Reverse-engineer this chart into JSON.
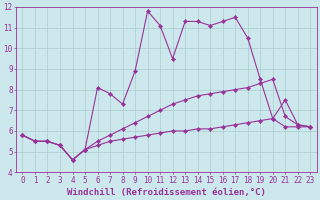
{
  "xlabel": "Windchill (Refroidissement éolien,°C)",
  "background_color": "#cce8ec",
  "grid_color": "#aacccc",
  "line_color": "#993399",
  "xlim": [
    -0.5,
    23.5
  ],
  "ylim": [
    4,
    12
  ],
  "xticks": [
    0,
    1,
    2,
    3,
    4,
    5,
    6,
    7,
    8,
    9,
    10,
    11,
    12,
    13,
    14,
    15,
    16,
    17,
    18,
    19,
    20,
    21,
    22,
    23
  ],
  "yticks": [
    4,
    5,
    6,
    7,
    8,
    9,
    10,
    11,
    12
  ],
  "series1_x": [
    0,
    1,
    2,
    3,
    4,
    5,
    6,
    7,
    8,
    9,
    10,
    11,
    12,
    13,
    14,
    15,
    16,
    17,
    18,
    19,
    20,
    21,
    22,
    23
  ],
  "series1_y": [
    5.8,
    5.5,
    5.5,
    5.3,
    4.6,
    5.1,
    5.3,
    5.5,
    5.6,
    5.7,
    5.8,
    5.9,
    6.0,
    6.0,
    6.1,
    6.1,
    6.2,
    6.3,
    6.4,
    6.5,
    6.6,
    6.2,
    6.2,
    6.2
  ],
  "series2_x": [
    0,
    1,
    2,
    3,
    4,
    5,
    6,
    7,
    8,
    9,
    10,
    11,
    12,
    13,
    14,
    15,
    16,
    17,
    18,
    19,
    20,
    21,
    22,
    23
  ],
  "series2_y": [
    5.8,
    5.5,
    5.5,
    5.3,
    4.6,
    5.1,
    5.5,
    5.8,
    6.1,
    6.4,
    6.7,
    7.0,
    7.3,
    7.5,
    7.7,
    7.8,
    7.9,
    8.0,
    8.1,
    8.3,
    8.5,
    6.7,
    6.3,
    6.2
  ],
  "series3_x": [
    0,
    1,
    2,
    3,
    4,
    5,
    6,
    7,
    8,
    9,
    10,
    11,
    12,
    13,
    14,
    15,
    16,
    17,
    18,
    19,
    20,
    21,
    22,
    23
  ],
  "series3_y": [
    5.8,
    5.5,
    5.5,
    5.3,
    4.6,
    5.1,
    8.1,
    7.8,
    7.3,
    8.9,
    11.8,
    11.1,
    9.5,
    11.3,
    11.3,
    11.1,
    11.3,
    11.5,
    10.5,
    8.5,
    6.6,
    7.5,
    6.3,
    6.2
  ],
  "tick_fontsize": 5.5,
  "label_fontsize": 6.5
}
